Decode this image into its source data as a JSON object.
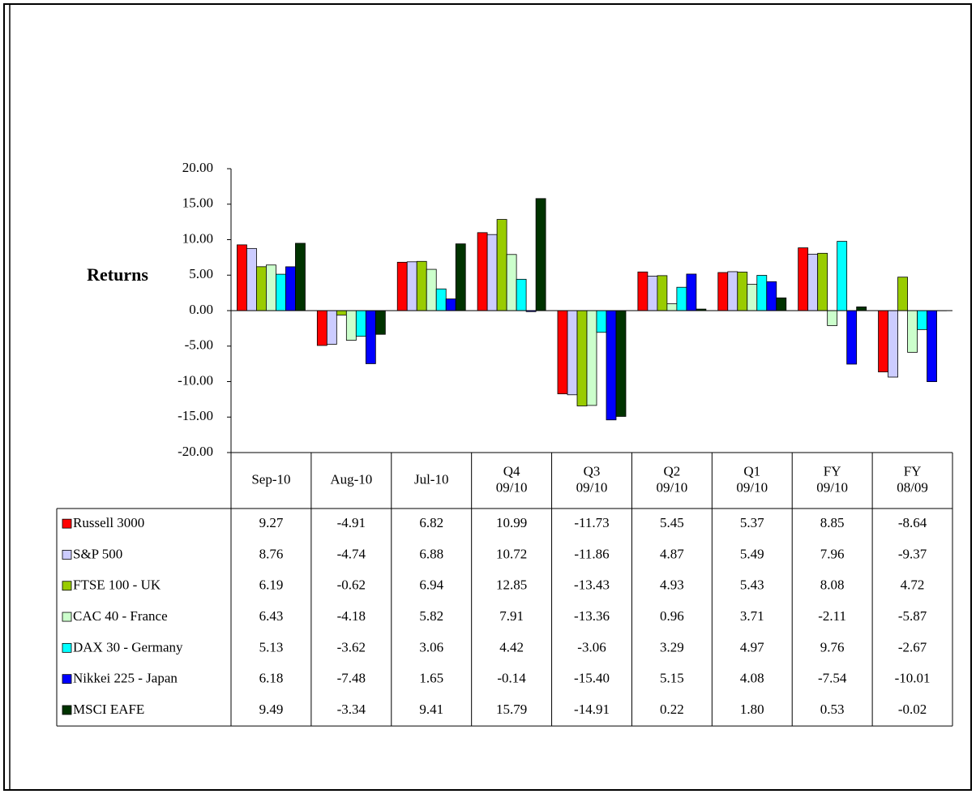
{
  "chart_data": {
    "type": "bar",
    "y_label": "Returns",
    "categories": [
      "Sep-10",
      "Aug-10",
      "Jul-10",
      "Q4\n09/10",
      "Q3\n09/10",
      "Q2\n09/10",
      "Q1\n09/10",
      "FY\n09/10",
      "FY\n08/09"
    ],
    "ylim": [
      -20,
      20
    ],
    "yticks": [
      {
        "value": -20,
        "label": "-20.00"
      },
      {
        "value": -15,
        "label": "-15.00"
      },
      {
        "value": -10,
        "label": "-10.00"
      },
      {
        "value": -5,
        "label": "-5.00"
      },
      {
        "value": 0,
        "label": "0.00"
      },
      {
        "value": 5,
        "label": "5.00"
      },
      {
        "value": 10,
        "label": "10.00"
      },
      {
        "value": 15,
        "label": "15.00"
      },
      {
        "value": 20,
        "label": "20.00"
      }
    ],
    "series": [
      {
        "name": "Russell 3000",
        "color": "#ff0000",
        "values": [
          9.27,
          -4.91,
          6.82,
          10.99,
          -11.73,
          5.45,
          5.37,
          8.85,
          -8.64
        ],
        "value_labels": [
          "9.27",
          "-4.91",
          "6.82",
          "10.99",
          "-11.73",
          "5.45",
          "5.37",
          "8.85",
          "-8.64"
        ]
      },
      {
        "name": "S&P 500",
        "color": "#ccccff",
        "values": [
          8.76,
          -4.74,
          6.88,
          10.72,
          -11.86,
          4.87,
          5.49,
          7.96,
          -9.37
        ],
        "value_labels": [
          "8.76",
          "-4.74",
          "6.88",
          "10.72",
          "-11.86",
          "4.87",
          "5.49",
          "7.96",
          "-9.37"
        ]
      },
      {
        "name": "FTSE 100 - UK",
        "color": "#99cc00",
        "values": [
          6.19,
          -0.62,
          6.94,
          12.85,
          -13.43,
          4.93,
          5.43,
          8.08,
          4.72
        ],
        "value_labels": [
          "6.19",
          "-0.62",
          "6.94",
          "12.85",
          "-13.43",
          "4.93",
          "5.43",
          "8.08",
          "4.72"
        ]
      },
      {
        "name": "CAC 40 - France",
        "color": "#ccffcc",
        "values": [
          6.43,
          -4.18,
          5.82,
          7.91,
          -13.36,
          0.96,
          3.71,
          -2.11,
          -5.87
        ],
        "value_labels": [
          "6.43",
          "-4.18",
          "5.82",
          "7.91",
          "-13.36",
          "0.96",
          "3.71",
          "-2.11",
          "-5.87"
        ]
      },
      {
        "name": "DAX 30 - Germany",
        "color": "#00ffff",
        "values": [
          5.13,
          -3.62,
          3.06,
          4.42,
          -3.06,
          3.29,
          4.97,
          9.76,
          -2.67
        ],
        "value_labels": [
          "5.13",
          "-3.62",
          "3.06",
          "4.42",
          "-3.06",
          "3.29",
          "4.97",
          "9.76",
          "-2.67"
        ]
      },
      {
        "name": "Nikkei 225 - Japan",
        "color": "#0000ff",
        "values": [
          6.18,
          -7.48,
          1.65,
          -0.14,
          -15.4,
          5.15,
          4.08,
          -7.54,
          -10.01
        ],
        "value_labels": [
          "6.18",
          "-7.48",
          "1.65",
          "-0.14",
          "-15.40",
          "5.15",
          "4.08",
          "-7.54",
          "-10.01"
        ]
      },
      {
        "name": "MSCI EAFE",
        "color": "#003300",
        "values": [
          9.49,
          -3.34,
          9.41,
          15.79,
          -14.91,
          0.22,
          1.8,
          0.53,
          -0.02
        ],
        "value_labels": [
          "9.49",
          "-3.34",
          "9.41",
          "15.79",
          "-14.91",
          "0.22",
          "1.80",
          "0.53",
          "-0.02"
        ]
      }
    ]
  }
}
